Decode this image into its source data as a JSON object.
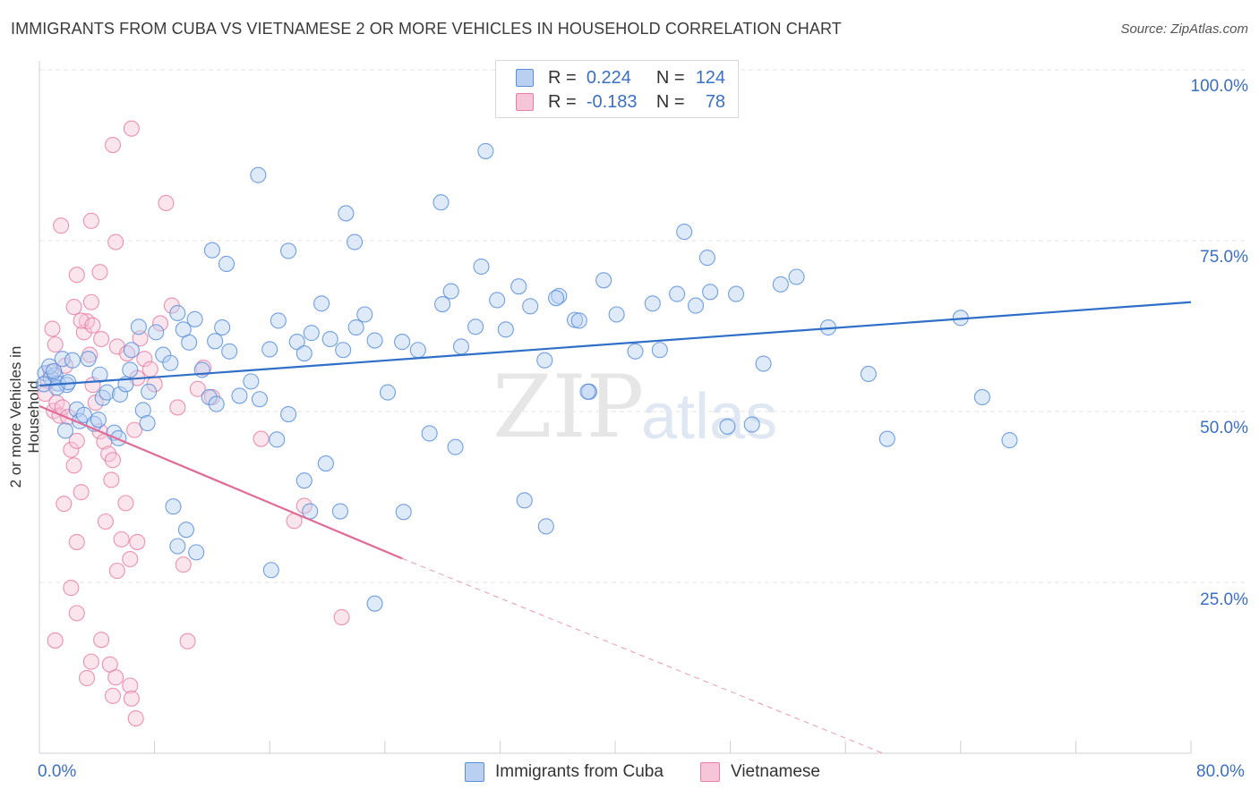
{
  "title": "IMMIGRANTS FROM CUBA VS VIETNAMESE 2 OR MORE VEHICLES IN HOUSEHOLD CORRELATION CHART",
  "source": "Source: ZipAtlas.com",
  "watermark": {
    "zip": "ZIP",
    "atlas": "atlas"
  },
  "colors": {
    "cuba": "#5b8fd9",
    "cuba_fill": "#b9d0f1",
    "viet": "#e77fa6",
    "viet_fill": "#f6c5d7",
    "cuba_line": "#2f6fc8",
    "viet_line": "#e06b97"
  },
  "legend": {
    "rows": [
      {
        "r_label": "R =",
        "r_value": "0.224",
        "n_label": "N =",
        "n_value": "124"
      },
      {
        "r_label": "R =",
        "r_value": "-0.183",
        "n_label": "N =",
        "n_value": "78"
      }
    ]
  },
  "chart_data": {
    "type": "scatter",
    "title": "IMMIGRANTS FROM CUBA VS VIETNAMESE 2 OR MORE VEHICLES IN HOUSEHOLD CORRELATION CHART",
    "xlabel": "",
    "ylabel": "2 or more Vehicles in Household",
    "xlim": [
      0,
      80
    ],
    "ylim": [
      0,
      100
    ],
    "x_tick_labels": [
      "0.0%",
      "80.0%"
    ],
    "y_ticks": [
      25,
      50,
      75,
      100
    ],
    "y_tick_labels": [
      "25.0%",
      "50.0%",
      "75.0%",
      "100.0%"
    ],
    "grid": true,
    "legend_position": "top-center",
    "series": [
      {
        "name": "Immigrants from Cuba",
        "trend": {
          "x": [
            0,
            80
          ],
          "y": [
            53.8,
            66.0
          ]
        },
        "points": [
          [
            0.4,
            55.6
          ],
          [
            0.8,
            54.9
          ],
          [
            1.1,
            55.3
          ],
          [
            1.3,
            54.1
          ],
          [
            1.6,
            57.7
          ],
          [
            1.9,
            53.9
          ],
          [
            2.3,
            57.5
          ],
          [
            2.6,
            50.3
          ],
          [
            2.8,
            48.6
          ],
          [
            3.1,
            49.5
          ],
          [
            3.4,
            57.7
          ],
          [
            3.8,
            48.2
          ],
          [
            4.1,
            48.8
          ],
          [
            4.4,
            52.0
          ],
          [
            4.7,
            52.8
          ],
          [
            5.2,
            46.9
          ],
          [
            5.6,
            52.5
          ],
          [
            6.0,
            54.0
          ],
          [
            6.4,
            59.0
          ],
          [
            6.9,
            62.4
          ],
          [
            7.2,
            50.2
          ],
          [
            7.6,
            52.9
          ],
          [
            8.1,
            61.6
          ],
          [
            8.6,
            58.3
          ],
          [
            9.1,
            57.1
          ],
          [
            9.6,
            64.4
          ],
          [
            10.0,
            62.0
          ],
          [
            10.4,
            60.1
          ],
          [
            10.8,
            63.5
          ],
          [
            11.3,
            56.1
          ],
          [
            11.8,
            52.1
          ],
          [
            12.2,
            60.3
          ],
          [
            12.7,
            62.3
          ],
          [
            13.2,
            58.8
          ],
          [
            13.9,
            52.3
          ],
          [
            14.7,
            54.4
          ],
          [
            15.3,
            51.8
          ],
          [
            16.0,
            59.1
          ],
          [
            16.6,
            63.3
          ],
          [
            17.3,
            49.6
          ],
          [
            17.9,
            60.2
          ],
          [
            18.4,
            58.5
          ],
          [
            18.9,
            61.5
          ],
          [
            19.6,
            65.8
          ],
          [
            20.2,
            60.6
          ],
          [
            21.1,
            59.0
          ],
          [
            22.0,
            62.3
          ],
          [
            22.6,
            64.2
          ],
          [
            23.3,
            60.4
          ],
          [
            24.2,
            52.8
          ],
          [
            25.2,
            60.2
          ],
          [
            26.3,
            59.0
          ],
          [
            27.1,
            46.8
          ],
          [
            28.0,
            65.7
          ],
          [
            28.6,
            67.6
          ],
          [
            29.3,
            59.5
          ],
          [
            30.3,
            62.4
          ],
          [
            31.8,
            66.3
          ],
          [
            32.4,
            62.0
          ],
          [
            33.3,
            68.3
          ],
          [
            34.1,
            65.4
          ],
          [
            35.1,
            57.5
          ],
          [
            36.1,
            66.9
          ],
          [
            37.2,
            63.4
          ],
          [
            38.2,
            52.9
          ],
          [
            39.2,
            69.2
          ],
          [
            40.1,
            64.2
          ],
          [
            41.4,
            58.8
          ],
          [
            42.6,
            65.8
          ],
          [
            43.1,
            59.0
          ],
          [
            44.3,
            67.2
          ],
          [
            45.6,
            65.5
          ],
          [
            46.6,
            67.5
          ],
          [
            48.4,
            67.2
          ],
          [
            49.5,
            48.1
          ],
          [
            50.3,
            57.0
          ],
          [
            51.5,
            68.6
          ],
          [
            52.6,
            69.7
          ],
          [
            54.8,
            62.3
          ],
          [
            57.6,
            55.5
          ],
          [
            64.0,
            63.7
          ],
          [
            65.5,
            52.1
          ],
          [
            67.4,
            45.8
          ],
          [
            58.9,
            46.0
          ],
          [
            0.3,
            54.0
          ],
          [
            0.7,
            56.6
          ],
          [
            1.0,
            55.9
          ],
          [
            1.2,
            53.5
          ],
          [
            1.8,
            47.2
          ],
          [
            2.0,
            54.3
          ],
          [
            4.2,
            55.4
          ],
          [
            5.5,
            46.1
          ],
          [
            6.3,
            56.1
          ],
          [
            7.5,
            48.3
          ],
          [
            9.3,
            36.1
          ],
          [
            10.2,
            32.7
          ],
          [
            10.9,
            29.4
          ],
          [
            12.0,
            73.6
          ],
          [
            13.0,
            71.6
          ],
          [
            15.2,
            84.6
          ],
          [
            17.3,
            73.5
          ],
          [
            18.4,
            39.9
          ],
          [
            19.9,
            42.4
          ],
          [
            20.9,
            35.4
          ],
          [
            21.3,
            79.0
          ],
          [
            21.9,
            74.8
          ],
          [
            23.3,
            21.9
          ],
          [
            25.3,
            35.3
          ],
          [
            27.9,
            80.6
          ],
          [
            28.9,
            44.8
          ],
          [
            30.7,
            71.2
          ],
          [
            31.0,
            88.1
          ],
          [
            33.7,
            37.0
          ],
          [
            35.2,
            33.2
          ],
          [
            35.9,
            66.6
          ],
          [
            37.5,
            63.3
          ],
          [
            38.1,
            52.9
          ],
          [
            44.8,
            76.3
          ],
          [
            46.4,
            72.5
          ],
          [
            47.8,
            47.8
          ],
          [
            16.1,
            26.8
          ],
          [
            16.5,
            45.9
          ],
          [
            18.8,
            35.4
          ],
          [
            9.6,
            30.3
          ],
          [
            12.3,
            51.1
          ]
        ]
      },
      {
        "name": "Vietnamese",
        "trend": {
          "x": [
            0,
            25.2
          ],
          "y": [
            50.8,
            28.5
          ]
        },
        "trend_dashed": {
          "x": [
            25.2,
            58.6
          ],
          "y": [
            28.5,
            0.0
          ]
        },
        "points": [
          [
            0.4,
            52.6
          ],
          [
            0.6,
            54.5
          ],
          [
            0.8,
            55.8
          ],
          [
            1.0,
            50.1
          ],
          [
            1.2,
            51.3
          ],
          [
            1.4,
            49.4
          ],
          [
            1.6,
            50.6
          ],
          [
            1.8,
            56.7
          ],
          [
            2.0,
            49.2
          ],
          [
            2.2,
            44.4
          ],
          [
            2.4,
            42.1
          ],
          [
            2.6,
            45.7
          ],
          [
            2.9,
            38.2
          ],
          [
            3.1,
            61.6
          ],
          [
            3.3,
            63.2
          ],
          [
            3.5,
            58.3
          ],
          [
            3.7,
            53.9
          ],
          [
            3.9,
            51.3
          ],
          [
            4.2,
            47.1
          ],
          [
            4.5,
            45.6
          ],
          [
            4.8,
            43.8
          ],
          [
            5.1,
            42.9
          ],
          [
            5.4,
            26.7
          ],
          [
            5.7,
            31.3
          ],
          [
            6.0,
            36.6
          ],
          [
            6.3,
            28.4
          ],
          [
            6.6,
            47.3
          ],
          [
            7.0,
            60.7
          ],
          [
            7.3,
            57.7
          ],
          [
            7.7,
            56.2
          ],
          [
            8.0,
            54.0
          ],
          [
            8.4,
            62.9
          ],
          [
            8.8,
            80.5
          ],
          [
            9.2,
            65.5
          ],
          [
            9.6,
            50.6
          ],
          [
            10.0,
            27.6
          ],
          [
            10.3,
            16.4
          ],
          [
            11.0,
            53.3
          ],
          [
            11.4,
            56.4
          ],
          [
            12.0,
            52.1
          ],
          [
            1.5,
            77.2
          ],
          [
            2.6,
            70.0
          ],
          [
            3.6,
            66.0
          ],
          [
            3.6,
            77.9
          ],
          [
            4.2,
            70.4
          ],
          [
            5.1,
            89.0
          ],
          [
            5.3,
            74.8
          ],
          [
            6.4,
            91.4
          ],
          [
            1.1,
            16.5
          ],
          [
            2.6,
            20.5
          ],
          [
            2.2,
            24.2
          ],
          [
            3.3,
            11.0
          ],
          [
            3.6,
            13.4
          ],
          [
            4.3,
            16.6
          ],
          [
            4.9,
            13.0
          ],
          [
            5.1,
            8.4
          ],
          [
            5.3,
            11.1
          ],
          [
            6.3,
            9.9
          ],
          [
            6.4,
            8.0
          ],
          [
            6.7,
            5.1
          ],
          [
            0.9,
            62.1
          ],
          [
            1.1,
            59.8
          ],
          [
            2.4,
            65.3
          ],
          [
            2.9,
            63.3
          ],
          [
            3.7,
            62.6
          ],
          [
            4.3,
            60.6
          ],
          [
            5.4,
            59.5
          ],
          [
            6.1,
            58.5
          ],
          [
            6.8,
            54.9
          ],
          [
            1.7,
            36.5
          ],
          [
            2.6,
            30.9
          ],
          [
            4.6,
            33.9
          ],
          [
            5.0,
            40.0
          ],
          [
            6.8,
            30.9
          ],
          [
            15.4,
            46.0
          ],
          [
            17.7,
            34.0
          ],
          [
            18.4,
            36.2
          ],
          [
            21.0,
            19.9
          ]
        ]
      }
    ]
  },
  "bottom_legend": [
    {
      "label": "Immigrants from Cuba"
    },
    {
      "label": "Vietnamese"
    }
  ]
}
